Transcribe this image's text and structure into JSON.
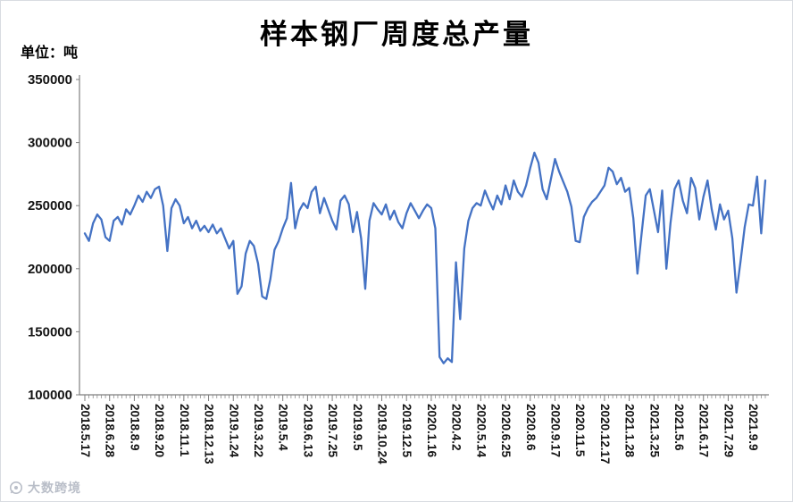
{
  "chart_data": {
    "type": "line",
    "title": "样本钢厂周度总产量",
    "unit_label": "单位：吨",
    "series_name": "样本钢厂周度总产量",
    "series_color": "#4472C4",
    "grid": false,
    "legend_position": "none",
    "ylim": [
      100000,
      350000
    ],
    "ytick_step": 50000,
    "y_tick_labels": [
      "100000",
      "150000",
      "200000",
      "250000",
      "300000",
      "350000"
    ],
    "x_tick_every": 6,
    "x_tick_labels": [
      "2018.5.17",
      "2018.6.28",
      "2018.8.9",
      "2018.9.20",
      "2018.11.1",
      "2018.12.13",
      "2019.1.24",
      "2019.3.22",
      "2019.5.4",
      "2019.6.13",
      "2019.7.25",
      "2019.9.5",
      "2019.10.24",
      "2019.12.5",
      "2020.1.16",
      "2020.4.2",
      "2020.5.14",
      "2020.6.25",
      "2020.8.6",
      "2020.9.17",
      "2020.11.5",
      "2020.12.17",
      "2021.1.28",
      "2021.3.25",
      "2021.5.6",
      "2021.6.17",
      "2021.7.29",
      "2021.9.9"
    ],
    "values": [
      228000,
      222000,
      236000,
      243000,
      239000,
      225000,
      222000,
      238000,
      241000,
      235000,
      247000,
      243000,
      250000,
      258000,
      253000,
      261000,
      256000,
      263000,
      265000,
      250000,
      214000,
      248000,
      255000,
      250000,
      236000,
      241000,
      232000,
      238000,
      230000,
      234000,
      229000,
      235000,
      228000,
      232000,
      224000,
      216000,
      222000,
      180000,
      186000,
      212000,
      222000,
      218000,
      204000,
      178000,
      176000,
      192000,
      215000,
      222000,
      232000,
      240000,
      268000,
      232000,
      246000,
      252000,
      248000,
      261000,
      265000,
      244000,
      256000,
      247000,
      238000,
      231000,
      254000,
      258000,
      251000,
      229000,
      245000,
      224000,
      184000,
      238000,
      252000,
      247000,
      243000,
      251000,
      239000,
      246000,
      237000,
      232000,
      244000,
      252000,
      246000,
      240000,
      246000,
      251000,
      248000,
      232000,
      130000,
      125000,
      129000,
      126000,
      205000,
      160000,
      216000,
      238000,
      248000,
      252000,
      250000,
      262000,
      254000,
      247000,
      258000,
      251000,
      266000,
      255000,
      270000,
      261000,
      257000,
      266000,
      280000,
      292000,
      284000,
      263000,
      255000,
      271000,
      287000,
      277000,
      269000,
      261000,
      249000,
      222000,
      221000,
      241000,
      248000,
      253000,
      256000,
      261000,
      266000,
      280000,
      277000,
      267000,
      272000,
      261000,
      264000,
      240000,
      196000,
      228000,
      258000,
      263000,
      246000,
      229000,
      262000,
      200000,
      236000,
      263000,
      270000,
      254000,
      244000,
      272000,
      264000,
      239000,
      257000,
      270000,
      247000,
      231000,
      251000,
      239000,
      246000,
      224000,
      181000,
      206000,
      233000,
      251000,
      250000,
      273000,
      228000,
      270000
    ]
  },
  "watermark": {
    "text": "大数跨境"
  }
}
